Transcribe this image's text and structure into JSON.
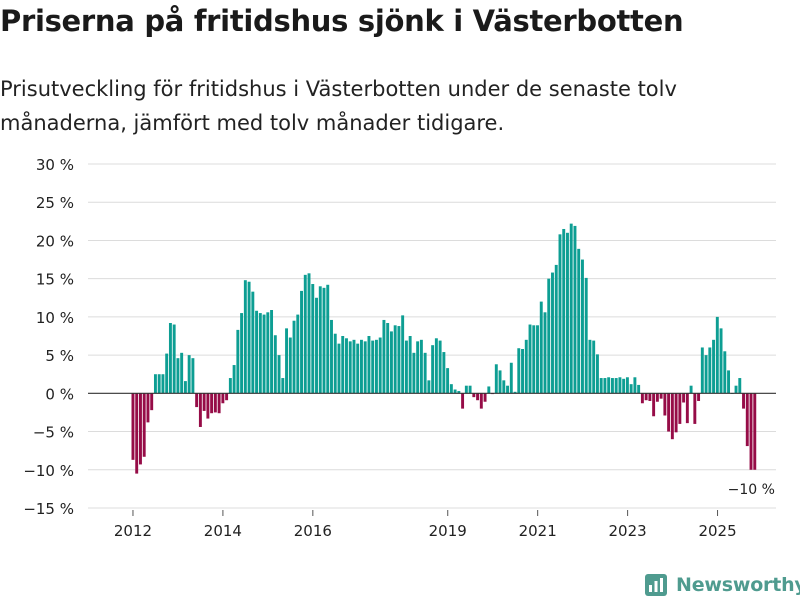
{
  "title": "Priserna på fritidshus sjönk i Västerbotten",
  "subtitle": "Prisutveckling för fritidshus i Västerbotten under de senaste tolv månaderna, jämfört med tolv månader tidigare.",
  "brand": {
    "name": "Newsworthy",
    "icon": "newsworthy-logo-icon"
  },
  "colors": {
    "positive": "#0d9e93",
    "negative": "#960c47",
    "grid": "#dcdcdc",
    "zero": "#333333",
    "text": "#222222"
  },
  "chart_data": {
    "type": "bar",
    "title": "Priserna på fritidshus sjönk i Västerbotten",
    "xlabel": "",
    "ylabel": "",
    "ylim": [
      -15,
      30
    ],
    "y_ticks": [
      -15,
      -10,
      -5,
      0,
      5,
      10,
      15,
      20,
      25,
      30
    ],
    "y_tick_labels": [
      "−15 %",
      "−10 %",
      "−5 %",
      "0 %",
      "5 %",
      "10 %",
      "15 %",
      "20 %",
      "25 %",
      "30 %"
    ],
    "x_ticks": [
      2012,
      2014,
      2016,
      2019,
      2021,
      2023,
      2025
    ],
    "x_tick_labels": [
      "2012",
      "2014",
      "2016",
      "2019",
      "2021",
      "2023",
      "2025"
    ],
    "x_start": 2012.0,
    "x_step": 0.0833,
    "unit": "%",
    "values": [
      -8.7,
      -10.5,
      -9.3,
      -8.3,
      -3.8,
      -2.2,
      2.5,
      2.5,
      2.5,
      5.2,
      9.2,
      9.0,
      4.6,
      5.3,
      1.6,
      5.0,
      4.6,
      -1.8,
      -4.4,
      -2.3,
      -3.3,
      -2.6,
      -2.5,
      -2.6,
      -1.3,
      -0.9,
      2.0,
      3.7,
      8.3,
      10.5,
      14.8,
      14.6,
      13.3,
      10.8,
      10.5,
      10.3,
      10.6,
      10.9,
      7.6,
      5.0,
      2.0,
      8.5,
      7.3,
      9.5,
      10.3,
      13.4,
      15.5,
      15.7,
      14.3,
      12.5,
      14.0,
      13.8,
      14.2,
      9.6,
      7.8,
      6.5,
      7.5,
      7.2,
      6.8,
      7.0,
      6.5,
      7.0,
      6.8,
      7.5,
      6.9,
      7.0,
      7.3,
      9.6,
      9.2,
      8.1,
      8.9,
      8.8,
      10.2,
      6.9,
      7.5,
      5.3,
      6.8,
      7.0,
      5.3,
      1.7,
      6.3,
      7.2,
      6.9,
      5.4,
      3.3,
      1.2,
      0.5,
      0.3,
      -2.0,
      1.0,
      1.0,
      -0.5,
      -0.9,
      -2.0,
      -1.1,
      0.9,
      -0.1,
      3.8,
      3.0,
      1.7,
      1.0,
      4.0,
      0.2,
      5.9,
      5.8,
      7.0,
      9.0,
      8.9,
      8.9,
      12.0,
      10.6,
      15.0,
      15.8,
      16.8,
      20.8,
      21.5,
      21.0,
      22.2,
      21.9,
      18.9,
      17.5,
      15.1,
      7.0,
      6.9,
      5.1,
      2.0,
      2.0,
      2.1,
      2.0,
      2.0,
      2.1,
      1.9,
      2.1,
      1.2,
      2.1,
      1.1,
      -1.3,
      -0.9,
      -1.0,
      -3.0,
      -1.1,
      -0.7,
      -2.9,
      -5.0,
      -6.0,
      -5.1,
      -4.0,
      -1.2,
      -3.9,
      1.0,
      -4.0,
      -1.0,
      6.0,
      5.0,
      6.0,
      7.0,
      10.0,
      8.5,
      5.5,
      3.0,
      0.0,
      1.0,
      2.0,
      -2.0,
      -6.9,
      -10.0,
      -10.0
    ],
    "annotations": [
      {
        "text": "−10 %",
        "x": 2025.75,
        "y": -10
      }
    ]
  }
}
